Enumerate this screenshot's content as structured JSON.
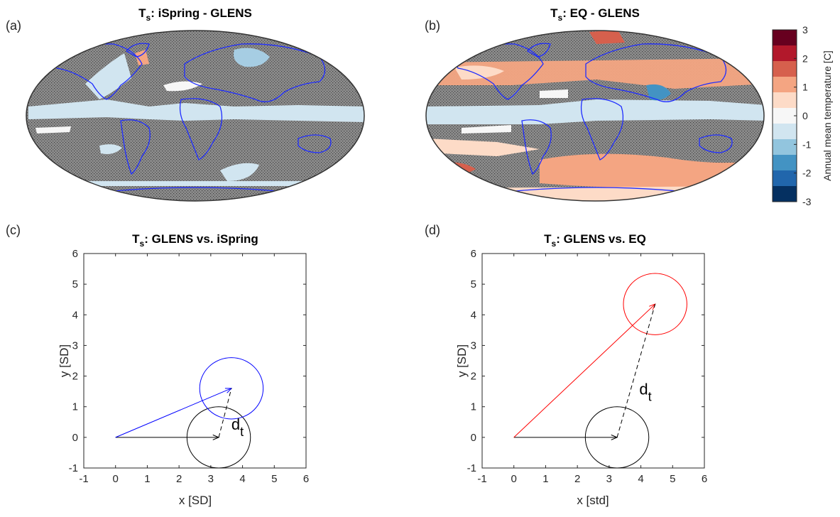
{
  "maps": [
    {
      "label": "(a)",
      "title_main": "T",
      "title_sub": "s",
      "title_rest": ": iSpring - GLENS"
    },
    {
      "label": "(b)",
      "title_main": "T",
      "title_sub": "s",
      "title_rest": ": EQ - GLENS"
    }
  ],
  "colorbar": {
    "label": "Annual mean temperature [C]",
    "ticks": [
      "3",
      "2",
      "1",
      "0",
      "-1",
      "-2",
      "-3"
    ],
    "colors": [
      "#67001f",
      "#b2182b",
      "#d6604d",
      "#f4a582",
      "#fddbc7",
      "#f7f7f7",
      "#d1e5f0",
      "#92c5de",
      "#4393c3",
      "#2166ac",
      "#053061"
    ],
    "range": [
      -3,
      3
    ]
  },
  "chart_data": [
    {
      "type": "scatter",
      "label": "(c)",
      "title_main": "T",
      "title_sub": "s",
      "title_rest": ": GLENS vs. iSpring",
      "xlabel": "x [SD]",
      "ylabel": "y [SD]",
      "xlim": [
        -1,
        6
      ],
      "ylim": [
        -1,
        6
      ],
      "xticks": [
        "-1",
        "0",
        "1",
        "2",
        "3",
        "4",
        "5",
        "6"
      ],
      "yticks": [
        "-1",
        "0",
        "1",
        "2",
        "3",
        "4",
        "5",
        "6"
      ],
      "annotation_main": "d",
      "annotation_sub": "t",
      "annotation_pos": [
        3.65,
        0.25
      ],
      "baseline_vector": {
        "from": [
          0,
          0
        ],
        "to": [
          3.25,
          0
        ],
        "color": "#000000"
      },
      "target_vector": {
        "from": [
          0,
          0
        ],
        "to": [
          3.65,
          1.6
        ],
        "color": "#0000ff"
      },
      "dt_line": {
        "from": [
          3.25,
          0
        ],
        "to": [
          3.65,
          1.6
        ]
      },
      "circles": [
        {
          "center": [
            3.25,
            0
          ],
          "radius": 1.0,
          "color": "#000000"
        },
        {
          "center": [
            3.65,
            1.6
          ],
          "radius": 1.0,
          "color": "#0000ff"
        }
      ]
    },
    {
      "type": "scatter",
      "label": "(d)",
      "title_main": "T",
      "title_sub": "s",
      "title_rest": ": GLENS vs. EQ",
      "xlabel": "x [std]",
      "ylabel": "y [SD]",
      "xlim": [
        -1,
        6
      ],
      "ylim": [
        -1,
        6
      ],
      "xticks": [
        "-1",
        "0",
        "1",
        "2",
        "3",
        "4",
        "5",
        "6"
      ],
      "yticks": [
        "-1",
        "0",
        "1",
        "2",
        "3",
        "4",
        "5",
        "6"
      ],
      "annotation_main": "d",
      "annotation_sub": "t",
      "annotation_pos": [
        3.95,
        1.4
      ],
      "baseline_vector": {
        "from": [
          0,
          0
        ],
        "to": [
          3.25,
          0
        ],
        "color": "#000000"
      },
      "target_vector": {
        "from": [
          0,
          0
        ],
        "to": [
          4.45,
          4.35
        ],
        "color": "#ff0000"
      },
      "dt_line": {
        "from": [
          3.25,
          0
        ],
        "to": [
          4.45,
          4.35
        ]
      },
      "circles": [
        {
          "center": [
            3.25,
            0
          ],
          "radius": 1.0,
          "color": "#000000"
        },
        {
          "center": [
            4.45,
            4.35
          ],
          "radius": 1.0,
          "color": "#ff0000"
        }
      ]
    }
  ]
}
